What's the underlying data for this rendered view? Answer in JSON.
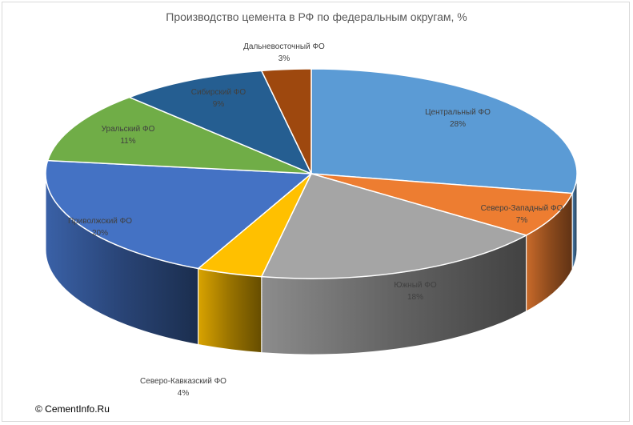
{
  "chart_data": {
    "type": "pie",
    "title": "Производство цемента в РФ по федеральным округам, %",
    "series": [
      {
        "name": "Центральный ФО",
        "value": 28,
        "pct_label": "28%",
        "color": "#5b9bd5"
      },
      {
        "name": "Северо-Западный ФО",
        "value": 7,
        "pct_label": "7%",
        "color": "#ed7d31"
      },
      {
        "name": "Южный ФО",
        "value": 18,
        "pct_label": "18%",
        "color": "#a5a5a5"
      },
      {
        "name": "Северо-Кавказский ФО",
        "value": 4,
        "pct_label": "4%",
        "color": "#ffc000"
      },
      {
        "name": "Приволжский ФО",
        "value": 20,
        "pct_label": "20%",
        "color": "#4472c4"
      },
      {
        "name": "Уральский ФО",
        "value": 11,
        "pct_label": "11%",
        "color": "#70ad47"
      },
      {
        "name": "Сибирский ФО",
        "value": 9,
        "pct_label": "9%",
        "color": "#255e91"
      },
      {
        "name": "Дальневосточный ФО",
        "value": 3,
        "pct_label": "3%",
        "color": "#9e480e"
      }
    ]
  },
  "copyright": "© CementInfo.Ru"
}
